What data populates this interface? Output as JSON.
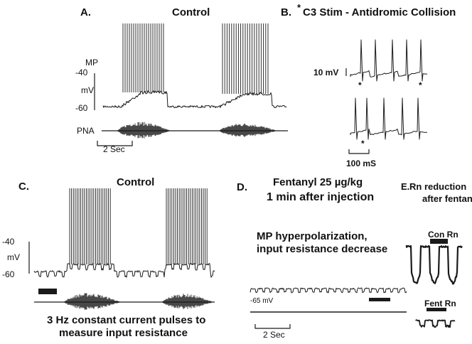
{
  "panels": {
    "a": {
      "label": "A.",
      "title": "Control",
      "mp_label": "MP",
      "y_tick_top": "-40",
      "unit": "mV",
      "y_tick_bottom": "-60",
      "pna_label": "PNA",
      "scalebar": "2 Sec"
    },
    "b": {
      "label": "B.",
      "asterisk": "*",
      "title": "C3 Stim - Antidromic Collision",
      "scale_mv": "10 mV",
      "scale_ms": "100 mS",
      "stim_marker": "*"
    },
    "c": {
      "label": "C.",
      "title": "Control",
      "y_tick_top": "-40",
      "unit": "mV",
      "y_tick_bottom": "-60",
      "caption_line1": "3 Hz constant current pulses to",
      "caption_line2": "measure  input resistance"
    },
    "d": {
      "label": "D.",
      "title_line1": "Fentanyl 25 µg/kg",
      "title_line2": "1 min after injection",
      "note_line1": "MP hyperpolarization,",
      "note_line2": "input resistance decrease",
      "baseline": "-65 mV",
      "scalebar": "2 Sec"
    },
    "e": {
      "label": "E.",
      "title_line1": "Rn reduction",
      "title_line2": "after fentanyl",
      "con_rn": "Con Rn",
      "fent_rn": "Fent Rn"
    }
  },
  "colors": {
    "trace": "#1a1a1a",
    "background": "#ffffff"
  }
}
